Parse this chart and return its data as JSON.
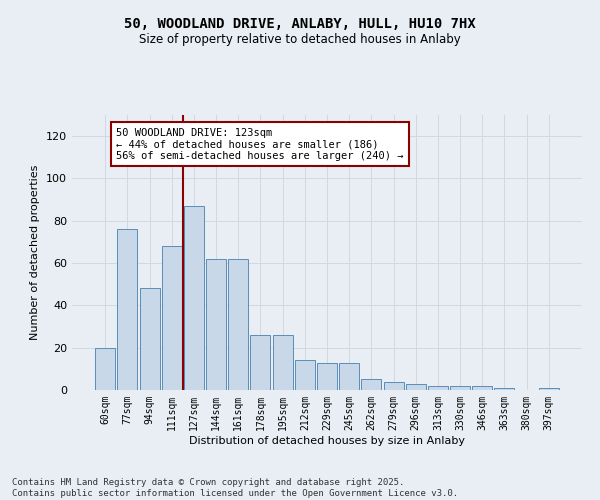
{
  "title_line1": "50, WOODLAND DRIVE, ANLABY, HULL, HU10 7HX",
  "title_line2": "Size of property relative to detached houses in Anlaby",
  "xlabel": "Distribution of detached houses by size in Anlaby",
  "ylabel": "Number of detached properties",
  "categories": [
    "60sqm",
    "77sqm",
    "94sqm",
    "111sqm",
    "127sqm",
    "144sqm",
    "161sqm",
    "178sqm",
    "195sqm",
    "212sqm",
    "229sqm",
    "245sqm",
    "262sqm",
    "279sqm",
    "296sqm",
    "313sqm",
    "330sqm",
    "346sqm",
    "363sqm",
    "380sqm",
    "397sqm"
  ],
  "values": [
    20,
    76,
    48,
    68,
    87,
    62,
    62,
    26,
    26,
    14,
    13,
    13,
    5,
    4,
    3,
    2,
    2,
    2,
    1,
    0,
    1
  ],
  "bar_color": "#c8d8e8",
  "bar_edge_color": "#5b8db8",
  "grid_color": "#d0d8e0",
  "bg_color": "#e8eef4",
  "vline_x_index": 3.5,
  "vline_color": "#8b0000",
  "annotation_text": "50 WOODLAND DRIVE: 123sqm\n← 44% of detached houses are smaller (186)\n56% of semi-detached houses are larger (240) →",
  "annotation_box_color": "#8b0000",
  "ylim": [
    0,
    130
  ],
  "yticks": [
    0,
    20,
    40,
    60,
    80,
    100,
    120
  ],
  "footer_line1": "Contains HM Land Registry data © Crown copyright and database right 2025.",
  "footer_line2": "Contains public sector information licensed under the Open Government Licence v3.0."
}
